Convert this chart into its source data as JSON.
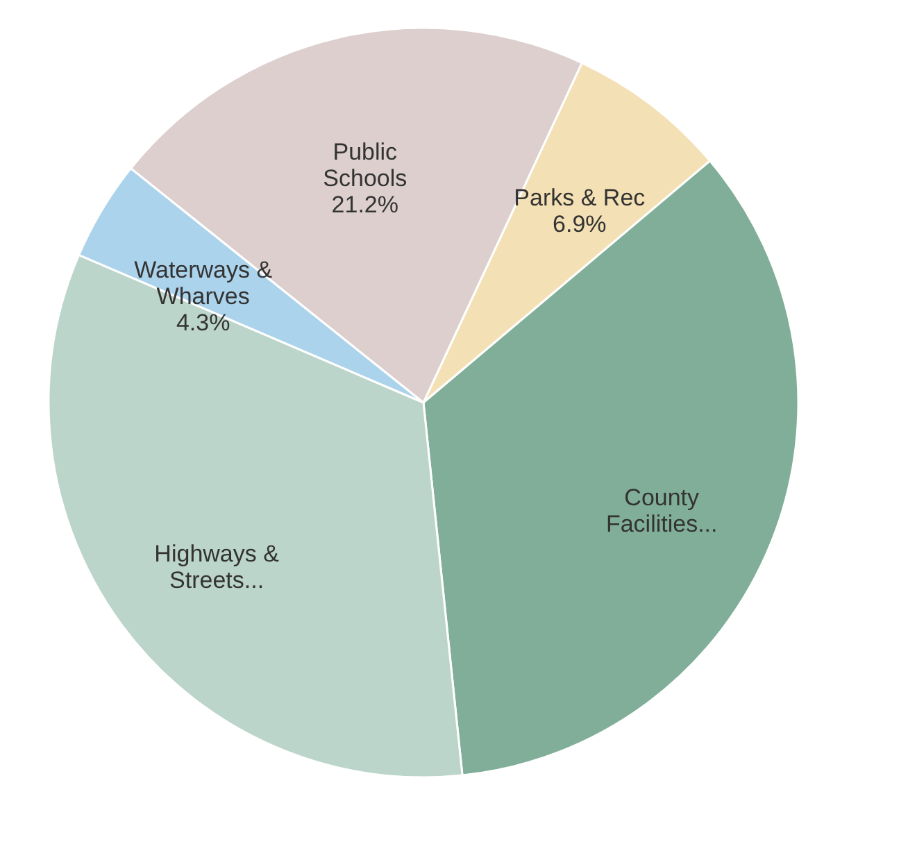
{
  "chart_data": {
    "type": "pie",
    "categories": [
      "Parks & Rec",
      "County Facilities...",
      "Highways & Streets...",
      "Waterways & Wharves",
      "Public Schools"
    ],
    "values": [
      6.9,
      34.5,
      33.1,
      4.3,
      21.2
    ],
    "value_labels": [
      "6.9%",
      null,
      null,
      "4.3%",
      "21.2%"
    ],
    "colors": [
      "#f3e0b4",
      "#80ae99",
      "#bcd5ca",
      "#acd3ec",
      "#dccfcd"
    ],
    "legend": false
  }
}
